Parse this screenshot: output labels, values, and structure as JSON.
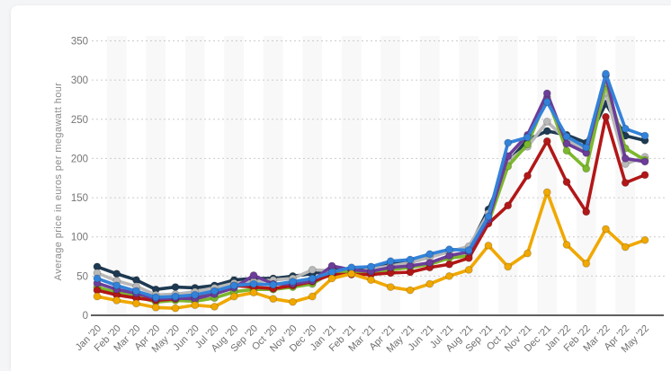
{
  "page": {
    "background_color": "#f4f5f7",
    "card_background_color": "#ffffff"
  },
  "chart_data": {
    "type": "line",
    "title": "",
    "y_axis_label": "Average price in euros per megawatt hour",
    "xlabel": "",
    "ylim": [
      0,
      350
    ],
    "yticks": [
      0,
      50,
      100,
      150,
      200,
      250,
      300,
      350
    ],
    "grid": "horizontal dotted lines, alternating vertical column stripes",
    "legend_position": "none visible",
    "marker": "filled circle",
    "categories": [
      "Jan '20",
      "Feb '20",
      "Mar '20",
      "Apr '20",
      "May '20",
      "Jun '20",
      "Jul '20",
      "Aug '20",
      "Sep '20",
      "Oct '20",
      "Nov '20",
      "Dec '20",
      "Jan '21",
      "Feb '21",
      "Mar '21",
      "Apr '21",
      "May '21",
      "Jun '21",
      "Jul '21",
      "Aug '21",
      "Sep '21",
      "Oct '21",
      "Nov '21",
      "Dec '21",
      "Jan '22",
      "Feb '22",
      "Mar '22",
      "Apr '22",
      "May '22"
    ],
    "series": [
      {
        "name": "dark-navy",
        "color": "#1e3a52",
        "values": [
          62,
          53,
          45,
          33,
          36,
          35,
          38,
          45,
          47,
          47,
          50,
          53,
          59,
          56,
          60,
          66,
          67,
          76,
          83,
          85,
          135,
          195,
          224,
          235,
          230,
          220,
          270,
          229,
          223
        ]
      },
      {
        "name": "gray",
        "color": "#b9b9b9",
        "values": [
          54,
          44,
          37,
          26,
          27,
          30,
          35,
          41,
          43,
          45,
          47,
          58,
          57,
          54,
          59,
          63,
          67,
          74,
          81,
          88,
          130,
          197,
          215,
          247,
          224,
          210,
          284,
          193,
          202
        ]
      },
      {
        "name": "green",
        "color": "#7cb82c",
        "values": [
          36,
          29,
          24,
          17,
          19,
          18,
          22,
          30,
          33,
          33,
          36,
          40,
          55,
          56,
          54,
          58,
          61,
          65,
          73,
          76,
          118,
          190,
          218,
          278,
          210,
          187,
          296,
          213,
          198
        ]
      },
      {
        "name": "dark-red",
        "color": "#b21717",
        "values": [
          32,
          26,
          22,
          19,
          21,
          24,
          30,
          38,
          36,
          34,
          38,
          43,
          52,
          52,
          52,
          54,
          55,
          61,
          65,
          73,
          117,
          140,
          178,
          222,
          170,
          132,
          253,
          169,
          179
        ]
      },
      {
        "name": "purple",
        "color": "#6c3d99",
        "values": [
          41,
          33,
          28,
          21,
          22,
          21,
          27,
          35,
          51,
          40,
          40,
          44,
          63,
          58,
          56,
          61,
          63,
          67,
          76,
          81,
          122,
          203,
          230,
          283,
          219,
          207,
          306,
          200,
          196
        ]
      },
      {
        "name": "blue",
        "color": "#3382d9",
        "values": [
          47,
          38,
          31,
          23,
          24,
          26,
          31,
          38,
          40,
          39,
          43,
          47,
          55,
          61,
          62,
          69,
          71,
          78,
          84,
          83,
          126,
          220,
          227,
          272,
          228,
          214,
          308,
          238,
          229
        ]
      },
      {
        "name": "yellow",
        "color": "#f0a800",
        "values": [
          24,
          19,
          15,
          10,
          9,
          13,
          11,
          24,
          29,
          21,
          17,
          24,
          47,
          53,
          45,
          36,
          32,
          40,
          50,
          58,
          89,
          62,
          79,
          157,
          90,
          66,
          110,
          87,
          96
        ]
      }
    ]
  },
  "axis_style": {
    "tick_label_color": "#757575",
    "axis_line_color": "#2b2b2b",
    "gridline_color": "#cccccc",
    "stripe_color": "#f2f2f2"
  }
}
